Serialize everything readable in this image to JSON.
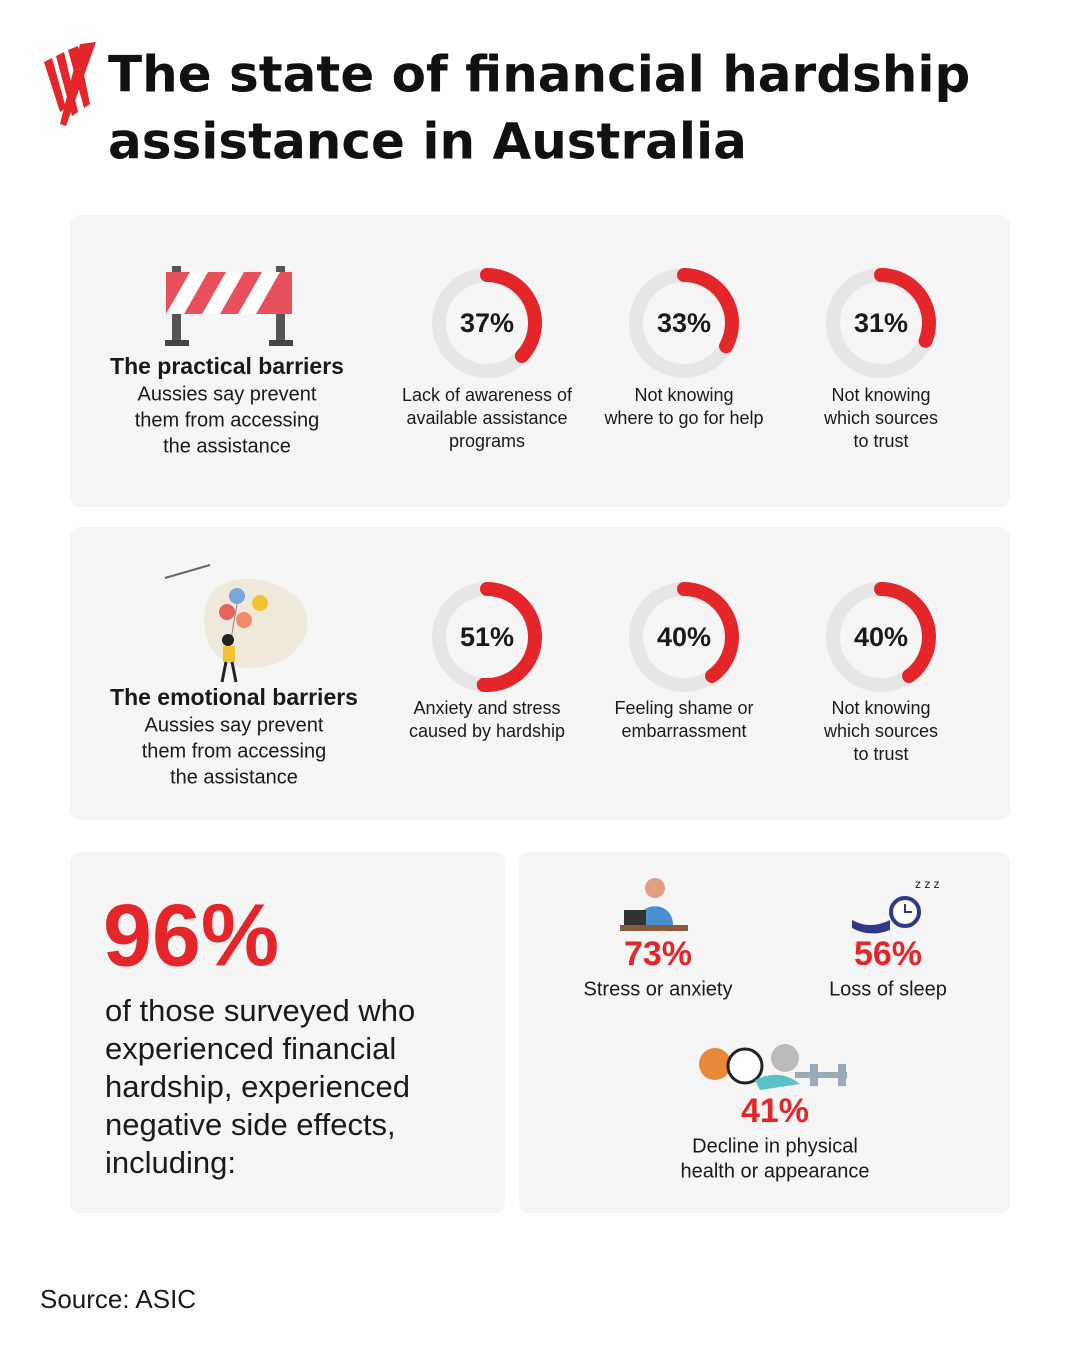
{
  "title": [
    "The state of financial hardship",
    "assistance in Australia"
  ],
  "sections": [
    {
      "heading": "The practical barriers",
      "description": [
        "Aussies say prevent",
        "them from accessing",
        "the assistance"
      ],
      "items": [
        {
          "value": 37,
          "value_label": "37%",
          "label": [
            "Lack of awareness of",
            "available assistance",
            "programs"
          ]
        },
        {
          "value": 33,
          "value_label": "33%",
          "label": [
            "Not knowing",
            "where to go for help"
          ]
        },
        {
          "value": 31,
          "value_label": "31%",
          "label": [
            "Not knowing",
            "which sources",
            "to trust"
          ]
        }
      ]
    },
    {
      "heading": "The emotional barriers",
      "description": [
        "Aussies say prevent",
        "them from accessing",
        "the assistance"
      ],
      "items": [
        {
          "value": 51,
          "value_label": "51%",
          "label": [
            "Anxiety and stress",
            "caused by hardship"
          ]
        },
        {
          "value": 40,
          "value_label": "40%",
          "label": [
            "Feeling shame or",
            "embarrassment"
          ]
        },
        {
          "value": 40,
          "value_label": "40%",
          "label": [
            "Not knowing",
            "which sources",
            "to trust"
          ]
        }
      ]
    }
  ],
  "side_effects": {
    "headline": "96%",
    "description": [
      "of those surveyed who",
      "experienced financial",
      "hardship, experienced",
      "negative side effects,",
      "including:"
    ],
    "items": [
      {
        "percent": "73%",
        "label": [
          "Stress or anxiety"
        ]
      },
      {
        "percent": "56%",
        "label": [
          "Loss of sleep"
        ]
      },
      {
        "percent": "41%",
        "label": [
          "Decline in physical",
          "health or appearance"
        ]
      }
    ]
  },
  "source": "Source: ASIC"
}
